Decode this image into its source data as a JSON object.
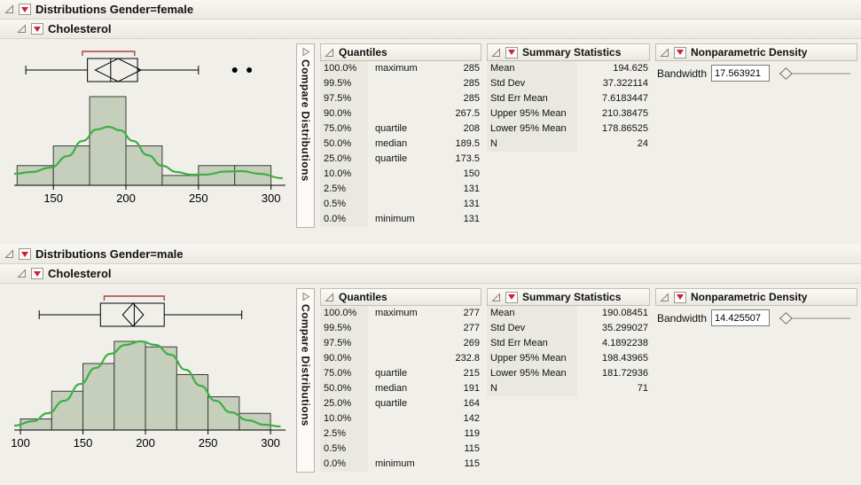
{
  "icons": {
    "disclosure_expanded": "◿",
    "disclosure_collapsed": "▷",
    "red_triangle_menu": "▼"
  },
  "colors": {
    "histogram_fill": "#c5cfbc",
    "histogram_stroke": "#3c3c3c",
    "density_curve": "#3faf46",
    "shortest_half_bracket": "#b0413c",
    "label_column_bg": "#e9e8e1"
  },
  "panels": [
    {
      "title": "Distributions Gender=female",
      "variable": "Cholesterol",
      "compare_label": "Compare Distributions",
      "quantiles": {
        "title": "Quantiles",
        "rows": [
          {
            "pct": "100.0%",
            "label": "maximum",
            "value": "285"
          },
          {
            "pct": "99.5%",
            "label": "",
            "value": "285"
          },
          {
            "pct": "97.5%",
            "label": "",
            "value": "285"
          },
          {
            "pct": "90.0%",
            "label": "",
            "value": "267.5"
          },
          {
            "pct": "75.0%",
            "label": "quartile",
            "value": "208"
          },
          {
            "pct": "50.0%",
            "label": "median",
            "value": "189.5"
          },
          {
            "pct": "25.0%",
            "label": "quartile",
            "value": "173.5"
          },
          {
            "pct": "10.0%",
            "label": "",
            "value": "150"
          },
          {
            "pct": "2.5%",
            "label": "",
            "value": "131"
          },
          {
            "pct": "0.5%",
            "label": "",
            "value": "131"
          },
          {
            "pct": "0.0%",
            "label": "minimum",
            "value": "131"
          }
        ]
      },
      "summary": {
        "title": "Summary Statistics",
        "rows": [
          {
            "label": "Mean",
            "value": "194.625"
          },
          {
            "label": "Std Dev",
            "value": "37.322114"
          },
          {
            "label": "Std Err Mean",
            "value": "7.6183447"
          },
          {
            "label": "Upper 95% Mean",
            "value": "210.38475"
          },
          {
            "label": "Lower 95% Mean",
            "value": "178.86525"
          },
          {
            "label": "N",
            "value": "24"
          }
        ]
      },
      "npd": {
        "title": "Nonparametric Density",
        "bandwidth_label": "Bandwidth",
        "bandwidth": "17.563921"
      }
    },
    {
      "title": "Distributions Gender=male",
      "variable": "Cholesterol",
      "compare_label": "Compare Distributions",
      "quantiles": {
        "title": "Quantiles",
        "rows": [
          {
            "pct": "100.0%",
            "label": "maximum",
            "value": "277"
          },
          {
            "pct": "99.5%",
            "label": "",
            "value": "277"
          },
          {
            "pct": "97.5%",
            "label": "",
            "value": "269"
          },
          {
            "pct": "90.0%",
            "label": "",
            "value": "232.8"
          },
          {
            "pct": "75.0%",
            "label": "quartile",
            "value": "215"
          },
          {
            "pct": "50.0%",
            "label": "median",
            "value": "191"
          },
          {
            "pct": "25.0%",
            "label": "quartile",
            "value": "164"
          },
          {
            "pct": "10.0%",
            "label": "",
            "value": "142"
          },
          {
            "pct": "2.5%",
            "label": "",
            "value": "119"
          },
          {
            "pct": "0.5%",
            "label": "",
            "value": "115"
          },
          {
            "pct": "0.0%",
            "label": "minimum",
            "value": "115"
          }
        ]
      },
      "summary": {
        "title": "Summary Statistics",
        "rows": [
          {
            "label": "Mean",
            "value": "190.08451"
          },
          {
            "label": "Std Dev",
            "value": "35.299027"
          },
          {
            "label": "Std Err Mean",
            "value": "4.1892238"
          },
          {
            "label": "Upper 95% Mean",
            "value": "198.43965"
          },
          {
            "label": "Lower 95% Mean",
            "value": "181.72936"
          },
          {
            "label": "N",
            "value": "71"
          }
        ]
      },
      "npd": {
        "title": "Nonparametric Density",
        "bandwidth_label": "Bandwidth",
        "bandwidth": "14.425507"
      }
    }
  ],
  "chart_data": [
    {
      "type": "histogram",
      "title": "Cholesterol (Gender=female)",
      "xlabel": "Cholesterol",
      "xlim": [
        123,
        310
      ],
      "x_ticks": [
        150,
        200,
        250,
        300
      ],
      "bins_start": 125,
      "bin_width": 25,
      "counts": [
        2,
        4,
        9,
        4,
        1,
        2,
        2
      ],
      "n": 24,
      "boxplot": {
        "whisker_low": 131,
        "q1": 173.5,
        "median": 189.5,
        "q3": 208,
        "whisker_high": 250,
        "mean": 194.625,
        "ci_low": 178.86525,
        "ci_high": 210.38475,
        "shortest_half": [
          170,
          206
        ],
        "outliers": [
          275,
          285
        ]
      },
      "density": [
        [
          123,
          0.13
        ],
        [
          135,
          0.15
        ],
        [
          148,
          0.2
        ],
        [
          160,
          0.33
        ],
        [
          170,
          0.5
        ],
        [
          180,
          0.63
        ],
        [
          188,
          0.66
        ],
        [
          196,
          0.62
        ],
        [
          205,
          0.5
        ],
        [
          215,
          0.34
        ],
        [
          225,
          0.22
        ],
        [
          235,
          0.15
        ],
        [
          245,
          0.12
        ],
        [
          255,
          0.12
        ],
        [
          268,
          0.155
        ],
        [
          280,
          0.16
        ],
        [
          292,
          0.13
        ],
        [
          308,
          0.08
        ]
      ]
    },
    {
      "type": "histogram",
      "title": "Cholesterol (Gender=male)",
      "xlabel": "Cholesterol",
      "xlim": [
        95,
        312
      ],
      "x_ticks": [
        100,
        150,
        200,
        250,
        300
      ],
      "bins_start": 100,
      "bin_width": 25,
      "counts": [
        2,
        7,
        12,
        16,
        15,
        10,
        6,
        3
      ],
      "n": 71,
      "boxplot": {
        "whisker_low": 115,
        "q1": 164,
        "median": 191,
        "q3": 215,
        "whisker_high": 277,
        "mean": 190.08451,
        "ci_low": 181.72936,
        "ci_high": 198.43965,
        "shortest_half": [
          167,
          215
        ],
        "outliers": []
      },
      "density": [
        [
          95,
          0.05
        ],
        [
          110,
          0.1
        ],
        [
          122,
          0.19
        ],
        [
          135,
          0.33
        ],
        [
          148,
          0.52
        ],
        [
          160,
          0.7
        ],
        [
          172,
          0.86
        ],
        [
          184,
          0.96
        ],
        [
          196,
          1.0
        ],
        [
          208,
          0.96
        ],
        [
          220,
          0.85
        ],
        [
          232,
          0.68
        ],
        [
          244,
          0.5
        ],
        [
          256,
          0.33
        ],
        [
          268,
          0.2
        ],
        [
          282,
          0.11
        ],
        [
          295,
          0.06
        ],
        [
          308,
          0.04
        ]
      ]
    }
  ]
}
